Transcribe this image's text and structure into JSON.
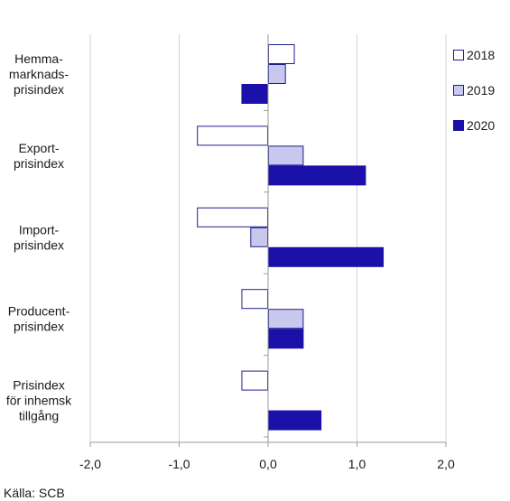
{
  "chart_data": {
    "type": "bar",
    "orientation": "horizontal",
    "categories": [
      [
        "Hemma-",
        "marknads-",
        "prisindex"
      ],
      [
        "Export-",
        "prisindex"
      ],
      [
        "Import-",
        "prisindex"
      ],
      [
        "Producent-",
        "prisindex"
      ],
      [
        "Prisindex",
        "för inhemsk",
        "tillgång"
      ]
    ],
    "series": [
      {
        "name": "2018",
        "color": "#ffffff",
        "stroke": "#1f1f8f",
        "values": [
          0.3,
          -0.8,
          -0.8,
          -0.3,
          -0.3
        ]
      },
      {
        "name": "2019",
        "color": "#c8c8ee",
        "stroke": "#1f1f8f",
        "values": [
          0.2,
          0.4,
          -0.2,
          0.4,
          0.0
        ]
      },
      {
        "name": "2020",
        "color": "#1b10a8",
        "stroke": "#1b10a8",
        "values": [
          -0.3,
          1.1,
          1.3,
          0.4,
          0.6
        ]
      }
    ],
    "xlim": [
      -2.0,
      2.0
    ],
    "xticks": [
      "-2,0",
      "-1,0",
      "0,0",
      "1,0",
      "2,0"
    ],
    "xtick_values": [
      -2.0,
      -1.0,
      0.0,
      1.0,
      2.0
    ],
    "grid": true,
    "legend": "right"
  },
  "source": "Källa: SCB"
}
